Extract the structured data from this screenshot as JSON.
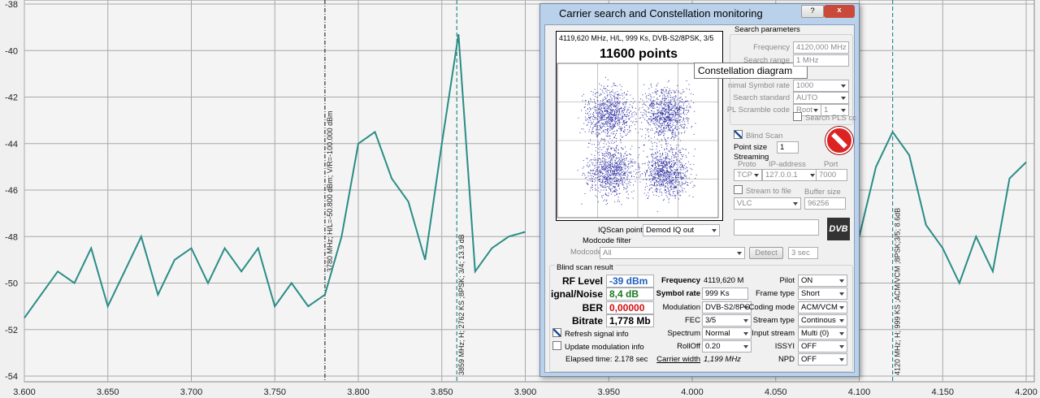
{
  "chart_data": {
    "type": "line",
    "x": [
      3.6,
      3.61,
      3.62,
      3.63,
      3.64,
      3.65,
      3.66,
      3.67,
      3.68,
      3.69,
      3.7,
      3.71,
      3.72,
      3.73,
      3.74,
      3.75,
      3.76,
      3.77,
      3.78,
      3.79,
      3.8,
      3.81,
      3.82,
      3.83,
      3.84,
      3.85,
      3.86,
      3.87,
      3.88,
      3.89,
      3.9,
      3.91,
      3.92,
      3.93,
      3.94,
      3.95,
      3.96,
      3.97,
      3.98,
      3.99,
      4.0,
      4.01,
      4.02,
      4.03,
      4.04,
      4.05,
      4.06,
      4.07,
      4.08,
      4.09,
      4.1,
      4.11,
      4.12,
      4.13,
      4.14,
      4.15,
      4.16,
      4.17,
      4.18,
      4.19,
      4.2
    ],
    "series": [
      {
        "color": "#2a8c86",
        "values": [
          -51.5,
          -50.5,
          -49.5,
          -50,
          -48.5,
          -51,
          -49.5,
          -48,
          -50.5,
          -49,
          -48.5,
          -50,
          -48.5,
          -49.5,
          -48.5,
          -51,
          -50,
          -51,
          -50.5,
          -48,
          -44,
          -43.5,
          -45.5,
          -46.5,
          -49,
          -44,
          -39.3,
          -49.5,
          -48.5,
          -48,
          -47.8,
          null,
          null,
          null,
          null,
          null,
          null,
          null,
          null,
          null,
          null,
          null,
          null,
          null,
          null,
          null,
          null,
          null,
          null,
          null,
          -48,
          -45,
          -43.5,
          -44.5,
          -47.5,
          -48.5,
          -50,
          -48,
          -49.5,
          -45.5,
          -44.8
        ]
      }
    ],
    "xlim": [
      3.6,
      4.2
    ],
    "xticks": [
      {
        "value": 3.6,
        "label": "3.600"
      },
      {
        "value": 3.65,
        "label": "3.650"
      },
      {
        "value": 3.7,
        "label": "3.700"
      },
      {
        "value": 3.75,
        "label": "3.750"
      },
      {
        "value": 3.8,
        "label": "3.800"
      },
      {
        "value": 3.85,
        "label": "3.850"
      },
      {
        "value": 3.9,
        "label": "3.900"
      },
      {
        "value": 3.95,
        "label": "3.950"
      },
      {
        "value": 4.0,
        "label": "4.000"
      },
      {
        "value": 4.05,
        "label": "4.050"
      },
      {
        "value": 4.1,
        "label": "4.100"
      },
      {
        "value": 4.15,
        "label": "4.150"
      },
      {
        "value": 4.2,
        "label": "4.200"
      }
    ],
    "ylim": [
      -54,
      -38
    ],
    "yticks": [
      -54,
      -52,
      -50,
      -48,
      -46,
      -44,
      -42,
      -40,
      -38
    ],
    "grid": true,
    "markers": [
      {
        "x": 3.78,
        "color": "#333333",
        "label": "3780 MHz;  H/L=-50.800 dBm;  V/R=-100.000 dBm"
      },
      {
        "x": 3.859,
        "color": "#2a8c86",
        "label": "3859 MHz; H; 2762 KS ;8PSK; 3/4; 13.9 dB"
      },
      {
        "x": 4.12,
        "color": "#2a8c86",
        "label": "4120 MHz; H; 999 KS ;ACM/VCM ;8PSK;3/5; 8.6dB"
      }
    ]
  },
  "dialog": {
    "title": "Carrier search and Constellation monitoring",
    "constellation": {
      "header": "4119,620 MHz, H/L, 999 Ks, DVB-S2/8PSK, 3/5",
      "points": "11600 points",
      "tooltip": "Constellation diagram"
    },
    "search": {
      "heading": "Search parameters",
      "rows": [
        {
          "label": "Frequency",
          "value": "4120,000 MHz"
        },
        {
          "label": "Search range",
          "value": "1 MHz"
        },
        {
          "label": "nimal Symbol rate",
          "value": "1000"
        },
        {
          "label": "Search standard",
          "value": "AUTO"
        },
        {
          "label": "PL Scramble code",
          "value": "Root",
          "value2": "1"
        }
      ],
      "pls": "Search PLS cc"
    },
    "blind_scan": "Blind Scan",
    "point_size": {
      "label": "Point size",
      "value": "1"
    },
    "streaming": {
      "heading": "Streaming",
      "proto": "Proto",
      "ip": "IP-address",
      "port": "Port",
      "proto_value": "TCP",
      "ip_value": "127.0.0.1",
      "port_value": "7000",
      "file": "Stream to file",
      "buffer": "Buffer size",
      "player": "VLC",
      "buffer_value": "96256"
    },
    "iq": {
      "label": "IQScan point",
      "value": "Demod IQ out"
    },
    "modcode": {
      "heading": "Modcode filter",
      "label": "Modcode",
      "value": "All",
      "detect": "Detect",
      "sec": "3 sec"
    },
    "result": {
      "heading": "Blind scan result",
      "signal": [
        {
          "label": "RF Level",
          "value": "-39 dBm"
        },
        {
          "label": "ignal/Noise",
          "value": "8,4 dB"
        },
        {
          "label": "BER",
          "value": "0,00000"
        },
        {
          "label": "Bitrate",
          "value": "1,778 Mb"
        }
      ],
      "middle": [
        {
          "label": "Frequency",
          "value": "4119,620 M"
        },
        {
          "label": "Symbol rate",
          "value": "999 Ks"
        },
        {
          "label": "Modulation",
          "value": "DVB-S2/8PS"
        },
        {
          "label": "FEC",
          "value": "3/5"
        },
        {
          "label": "Spectrum",
          "value": "Normal"
        },
        {
          "label": "RollOff",
          "value": "0.20"
        },
        {
          "label": "Carrier width",
          "value": "1,199 MHz"
        }
      ],
      "right": [
        {
          "label": "Pilot",
          "value": "ON"
        },
        {
          "label": "Frame type",
          "value": "Short"
        },
        {
          "label": "Coding mode",
          "value": "ACM/VCM"
        },
        {
          "label": "Stream type",
          "value": "Continous"
        },
        {
          "label": "Input stream",
          "value": "Multi (0)"
        },
        {
          "label": "ISSYI",
          "value": "OFF"
        },
        {
          "label": "NPD",
          "value": "OFF"
        }
      ],
      "refresh": "Refresh signal info",
      "update": "Update modulation info",
      "elapsed": "Elapsed time: 2.178 sec"
    }
  }
}
